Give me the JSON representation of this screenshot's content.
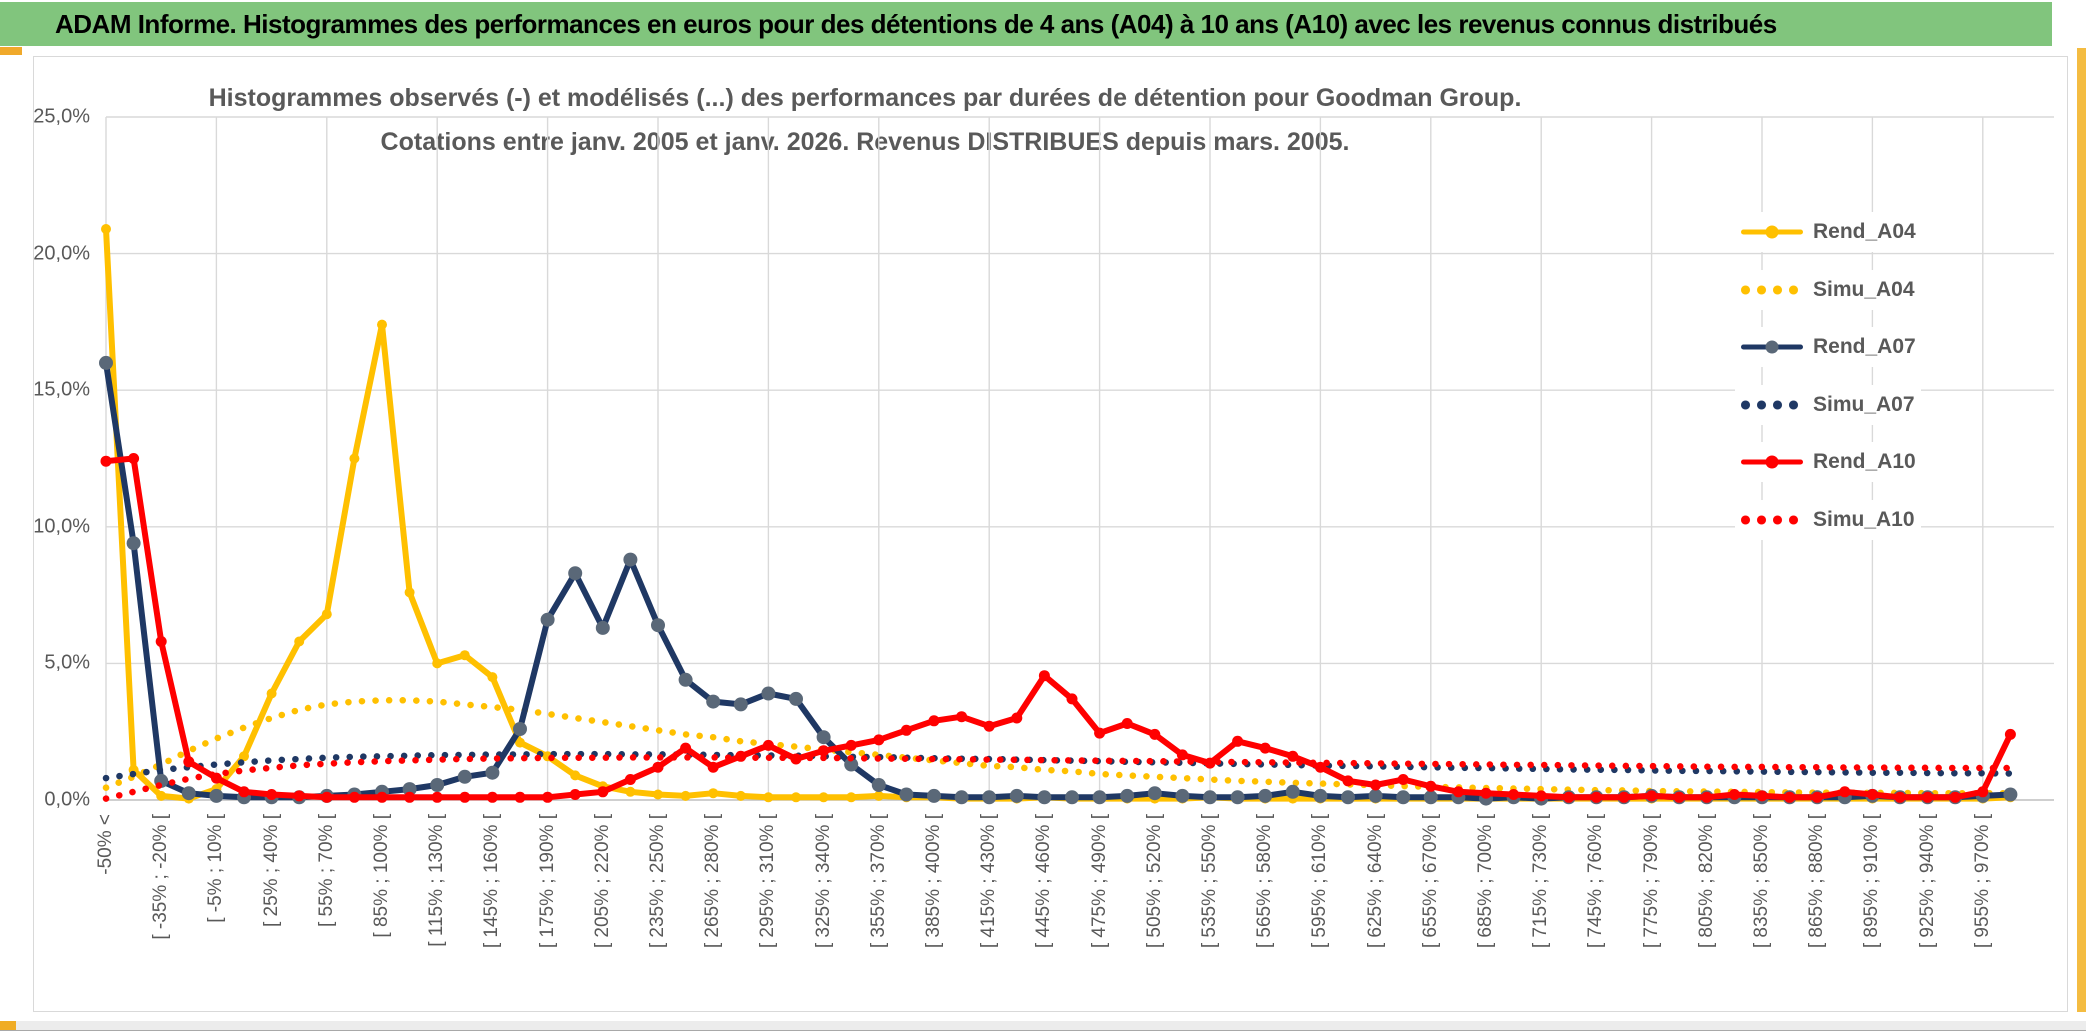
{
  "banner": {
    "text": "ADAM Informe. Histogrammes des performances en euros pour des détentions de 4 ans (A04) à 10 ans (A10) avec les revenus connus distribués"
  },
  "chart": {
    "title_line1": "Histogrammes observés (-) et modélisés (...) des performances par durées de détention pour Goodman Group.",
    "title_line2": "Cotations entre janv. 2005 et janv. 2026. Revenus DISTRIBUES depuis mars. 2005.",
    "accent_color": "#F0A92B",
    "banner_color": "#81C57D",
    "grid_color": "#D9D9D9",
    "axis_text_color": "#595959"
  },
  "chart_data": {
    "type": "line",
    "title": "Histogrammes observés (-) et modélisés (...) des performances par durées de détention pour Goodman Group. Cotations entre janv. 2005 et janv. 2026. Revenus DISTRIBUES depuis mars. 2005.",
    "ylim": [
      0,
      25
    ],
    "y_tick_step": 5,
    "y_tick_labels": [
      "0,0%",
      "5,0%",
      "10,0%",
      "15,0%",
      "20,0%",
      "25,0%"
    ],
    "grid": true,
    "legend_position": "right-inside",
    "n_bins": 70,
    "x_label_every": 2,
    "x_labels_visible": [
      "-50% <",
      "[ -35% ; -20% [",
      "[ -5% ; 10% [",
      "[ 25% ; 40% [",
      "[ 55% ; 70% [",
      "[ 85% ; 100% [",
      "[ 115% ; 130% [",
      "[ 145% ; 160% [",
      "[ 175% ; 190% [",
      "[ 205% ; 220% [",
      "[ 235% ; 250% [",
      "[ 265% ; 280% [",
      "[ 295% ; 310% [",
      "[ 325% ; 340% [",
      "[ 355% ; 370% [",
      "[ 385% ; 400% [",
      "[ 415% ; 430% [",
      "[ 445% ; 460% [",
      "[ 475% ; 490% [",
      "[ 505% ; 520% [",
      "[ 535% ; 550% [",
      "[ 565% ; 580% [",
      "[ 595% ; 610% [",
      "[ 625% ; 640% [",
      "[ 655% ; 670% [",
      "[ 685% ; 700% [",
      "[ 715% ; 730% [",
      "[ 745% ; 760% [",
      "[ 775% ; 790% [",
      "[ 805% ; 820% [",
      "[ 835% ; 850% [",
      "[ 865% ; 880% [",
      "[ 895% ; 910% [",
      "[ 925% ; 940% [",
      "[ 955% ; 970% ["
    ],
    "series": [
      {
        "name": "Rend_A04",
        "style": "solid",
        "color": "#FFC000",
        "marker_color": "#FFC000",
        "marker_r": 5,
        "values": [
          20.9,
          1.1,
          0.15,
          0.05,
          0.4,
          1.6,
          3.9,
          5.8,
          6.8,
          12.5,
          17.4,
          7.6,
          5.0,
          5.3,
          4.5,
          2.1,
          1.6,
          0.9,
          0.5,
          0.3,
          0.2,
          0.15,
          0.25,
          0.15,
          0.1,
          0.1,
          0.1,
          0.1,
          0.15,
          0.1,
          0.1,
          0.05,
          0.05,
          0.05,
          0.1,
          0.05,
          0.05,
          0.05,
          0.05,
          0.05,
          0.1,
          0.05,
          0.05,
          0.05,
          0.05,
          0.05,
          0.05,
          0.05,
          0.05,
          0.05,
          0.05,
          0.05,
          0.05,
          0.05,
          0.05,
          0.05,
          0.05,
          0.05,
          0.05,
          0.05,
          0.05,
          0.05,
          0.05,
          0.05,
          0.05,
          0.05,
          0.05,
          0.05,
          0.05,
          0.1
        ]
      },
      {
        "name": "Simu_A04",
        "style": "dotted",
        "color": "#FFC000",
        "values": [
          0.45,
          0.85,
          1.3,
          1.8,
          2.25,
          2.65,
          3.0,
          3.3,
          3.5,
          3.6,
          3.65,
          3.65,
          3.6,
          3.5,
          3.4,
          3.3,
          3.15,
          3.0,
          2.85,
          2.7,
          2.55,
          2.4,
          2.3,
          2.15,
          2.05,
          1.95,
          1.85,
          1.75,
          1.65,
          1.55,
          1.45,
          1.35,
          1.25,
          1.2,
          1.1,
          1.05,
          0.95,
          0.9,
          0.85,
          0.8,
          0.75,
          0.7,
          0.67,
          0.63,
          0.6,
          0.57,
          0.54,
          0.51,
          0.48,
          0.46,
          0.44,
          0.42,
          0.4,
          0.38,
          0.36,
          0.35,
          0.33,
          0.32,
          0.31,
          0.3,
          0.29,
          0.28,
          0.27,
          0.27,
          0.26,
          0.26,
          0.25,
          0.25,
          0.25,
          0.25
        ]
      },
      {
        "name": "Rend_A07",
        "style": "solid",
        "color": "#1F3864",
        "marker_color": "#5A6878",
        "marker_r": 7,
        "values": [
          16.0,
          9.4,
          0.7,
          0.25,
          0.15,
          0.1,
          0.1,
          0.1,
          0.15,
          0.2,
          0.3,
          0.4,
          0.55,
          0.85,
          1.0,
          2.6,
          6.6,
          8.3,
          6.3,
          8.8,
          6.4,
          4.4,
          3.6,
          3.5,
          3.9,
          3.7,
          2.3,
          1.3,
          0.55,
          0.2,
          0.15,
          0.1,
          0.1,
          0.15,
          0.1,
          0.1,
          0.1,
          0.15,
          0.25,
          0.15,
          0.1,
          0.1,
          0.15,
          0.3,
          0.15,
          0.1,
          0.15,
          0.1,
          0.1,
          0.1,
          0.05,
          0.1,
          0.05,
          0.1,
          0.1,
          0.1,
          0.15,
          0.1,
          0.1,
          0.1,
          0.1,
          0.1,
          0.1,
          0.1,
          0.15,
          0.1,
          0.1,
          0.1,
          0.15,
          0.2
        ]
      },
      {
        "name": "Simu_A07",
        "style": "dotted",
        "color": "#1F3864",
        "values": [
          0.8,
          0.95,
          1.1,
          1.2,
          1.3,
          1.38,
          1.45,
          1.5,
          1.55,
          1.58,
          1.6,
          1.62,
          1.64,
          1.65,
          1.66,
          1.67,
          1.68,
          1.68,
          1.68,
          1.67,
          1.67,
          1.66,
          1.65,
          1.64,
          1.63,
          1.62,
          1.6,
          1.58,
          1.57,
          1.55,
          1.53,
          1.51,
          1.5,
          1.48,
          1.46,
          1.44,
          1.42,
          1.4,
          1.38,
          1.36,
          1.34,
          1.32,
          1.3,
          1.28,
          1.26,
          1.25,
          1.23,
          1.21,
          1.2,
          1.18,
          1.17,
          1.15,
          1.14,
          1.12,
          1.11,
          1.1,
          1.08,
          1.07,
          1.06,
          1.05,
          1.04,
          1.03,
          1.02,
          1.01,
          1.0,
          1.0,
          0.99,
          0.98,
          0.98,
          0.97
        ]
      },
      {
        "name": "Rend_A10",
        "style": "solid",
        "color": "#FF0000",
        "marker_color": "#FF0000",
        "marker_r": 5.5,
        "values": [
          12.4,
          12.5,
          5.8,
          1.4,
          0.8,
          0.3,
          0.2,
          0.15,
          0.1,
          0.1,
          0.1,
          0.1,
          0.1,
          0.1,
          0.1,
          0.1,
          0.1,
          0.2,
          0.3,
          0.75,
          1.2,
          1.9,
          1.2,
          1.6,
          2.0,
          1.5,
          1.8,
          2.0,
          2.2,
          2.55,
          2.9,
          3.05,
          2.7,
          3.0,
          4.55,
          3.7,
          2.45,
          2.8,
          2.4,
          1.65,
          1.35,
          2.15,
          1.9,
          1.6,
          1.2,
          0.7,
          0.55,
          0.75,
          0.5,
          0.3,
          0.25,
          0.2,
          0.15,
          0.1,
          0.1,
          0.1,
          0.15,
          0.1,
          0.1,
          0.2,
          0.15,
          0.1,
          0.1,
          0.3,
          0.2,
          0.1,
          0.1,
          0.1,
          0.3,
          2.4
        ]
      },
      {
        "name": "Simu_A10",
        "style": "dotted",
        "color": "#FF0000",
        "values": [
          0.05,
          0.3,
          0.55,
          0.78,
          0.95,
          1.08,
          1.18,
          1.27,
          1.33,
          1.38,
          1.42,
          1.45,
          1.48,
          1.5,
          1.52,
          1.53,
          1.54,
          1.55,
          1.55,
          1.56,
          1.56,
          1.56,
          1.56,
          1.55,
          1.55,
          1.54,
          1.54,
          1.53,
          1.52,
          1.51,
          1.5,
          1.49,
          1.48,
          1.47,
          1.46,
          1.45,
          1.44,
          1.43,
          1.42,
          1.41,
          1.4,
          1.39,
          1.38,
          1.37,
          1.36,
          1.35,
          1.34,
          1.33,
          1.32,
          1.31,
          1.3,
          1.29,
          1.28,
          1.27,
          1.26,
          1.25,
          1.24,
          1.23,
          1.22,
          1.21,
          1.21,
          1.2,
          1.2,
          1.19,
          1.19,
          1.18,
          1.18,
          1.17,
          1.17,
          1.17
        ]
      }
    ]
  }
}
